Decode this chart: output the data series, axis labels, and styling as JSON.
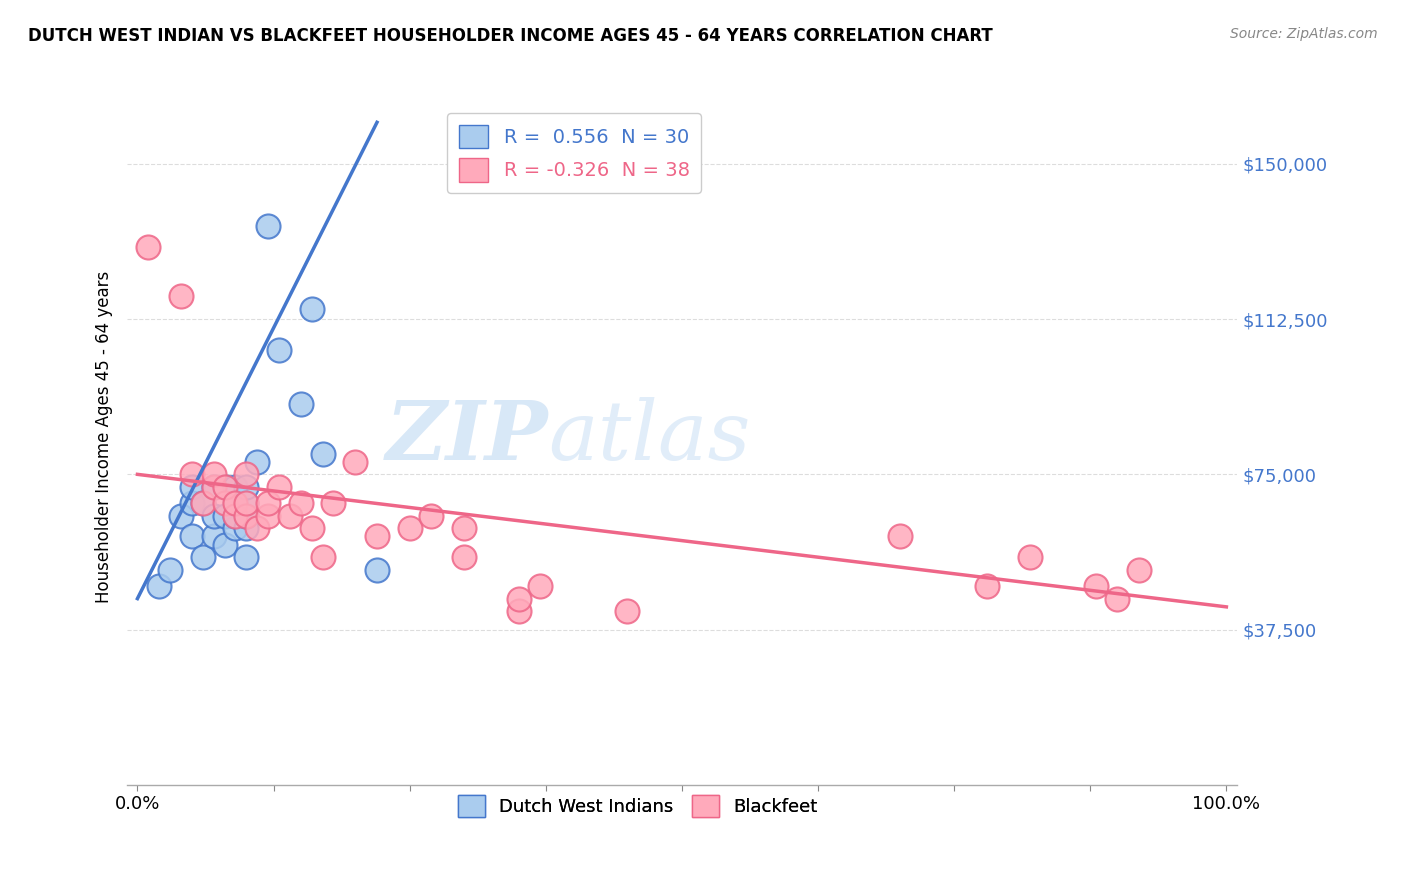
{
  "title": "DUTCH WEST INDIAN VS BLACKFEET HOUSEHOLDER INCOME AGES 45 - 64 YEARS CORRELATION CHART",
  "source": "Source: ZipAtlas.com",
  "ylabel": "Householder Income Ages 45 - 64 years",
  "yticks": [
    37500,
    75000,
    112500,
    150000
  ],
  "ytick_labels": [
    "$37,500",
    "$75,000",
    "$112,500",
    "$150,000"
  ],
  "legend1_label": "Dutch West Indians",
  "legend2_label": "Blackfeet",
  "r1": 0.556,
  "n1": 30,
  "r2": -0.326,
  "n2": 38,
  "blue_color": "#AACCEE",
  "pink_color": "#FFAABB",
  "line_blue": "#4477CC",
  "line_pink": "#EE6688",
  "ytick_color": "#4477CC",
  "watermark_zip": "ZIP",
  "watermark_atlas": "atlas",
  "blue_points_x": [
    0.02,
    0.03,
    0.04,
    0.05,
    0.05,
    0.05,
    0.06,
    0.06,
    0.07,
    0.07,
    0.07,
    0.08,
    0.08,
    0.08,
    0.09,
    0.09,
    0.09,
    0.09,
    0.1,
    0.1,
    0.1,
    0.1,
    0.1,
    0.11,
    0.12,
    0.13,
    0.15,
    0.16,
    0.17,
    0.22
  ],
  "blue_points_y": [
    48000,
    52000,
    65000,
    60000,
    68000,
    72000,
    55000,
    68000,
    60000,
    65000,
    72000,
    58000,
    65000,
    72000,
    62000,
    65000,
    68000,
    72000,
    55000,
    62000,
    65000,
    68000,
    72000,
    78000,
    135000,
    105000,
    92000,
    115000,
    80000,
    52000
  ],
  "pink_points_x": [
    0.01,
    0.04,
    0.05,
    0.06,
    0.07,
    0.07,
    0.08,
    0.08,
    0.09,
    0.09,
    0.1,
    0.1,
    0.1,
    0.11,
    0.12,
    0.12,
    0.13,
    0.14,
    0.15,
    0.16,
    0.17,
    0.18,
    0.2,
    0.22,
    0.25,
    0.27,
    0.3,
    0.3,
    0.35,
    0.35,
    0.37,
    0.45,
    0.7,
    0.78,
    0.82,
    0.88,
    0.9,
    0.92
  ],
  "pink_points_y": [
    130000,
    118000,
    75000,
    68000,
    72000,
    75000,
    68000,
    72000,
    65000,
    68000,
    65000,
    68000,
    75000,
    62000,
    65000,
    68000,
    72000,
    65000,
    68000,
    62000,
    55000,
    68000,
    78000,
    60000,
    62000,
    65000,
    55000,
    62000,
    42000,
    45000,
    48000,
    42000,
    60000,
    48000,
    55000,
    48000,
    45000,
    52000
  ],
  "blue_line_x0": 0.0,
  "blue_line_y0": 45000,
  "blue_line_x1": 0.22,
  "blue_line_y1": 160000,
  "pink_line_x0": 0.0,
  "pink_line_y0": 75000,
  "pink_line_x1": 1.0,
  "pink_line_y1": 43000,
  "xlim": [
    -0.01,
    1.01
  ],
  "ylim": [
    0,
    168000
  ],
  "xtick_positions": [
    0.0,
    0.125,
    0.25,
    0.375,
    0.5,
    0.625,
    0.75,
    0.875,
    1.0
  ]
}
